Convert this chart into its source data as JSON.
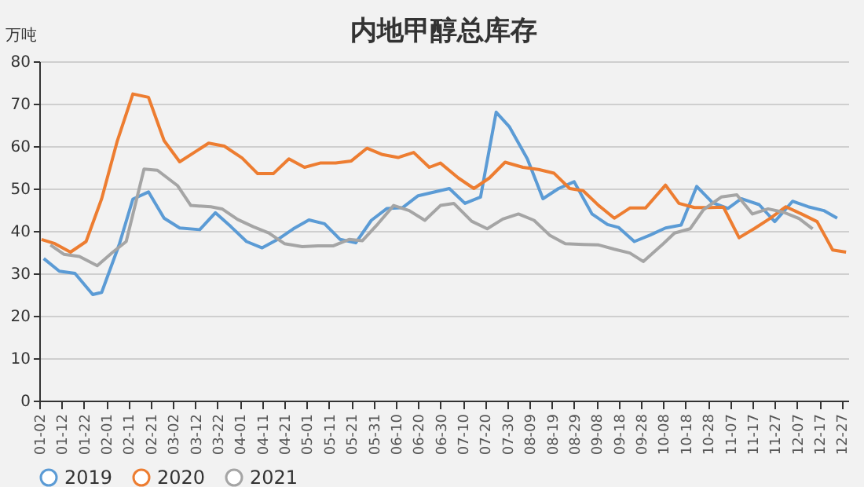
{
  "chart_data": {
    "type": "line",
    "title": "内地甲醇总库存",
    "ylabel": "万吨",
    "ylim": [
      0,
      80
    ],
    "yticks": [
      0,
      10,
      20,
      30,
      40,
      50,
      60,
      70,
      80
    ],
    "xlim": [
      "--01-02",
      "--12-30"
    ],
    "xticks": [
      {
        "value": "--01-02",
        "label": "01-02"
      },
      {
        "value": "--01-12",
        "label": "01-12"
      },
      {
        "value": "--01-22",
        "label": "01-22"
      },
      {
        "value": "--02-01",
        "label": "02-01"
      },
      {
        "value": "--02-11",
        "label": "02-11"
      },
      {
        "value": "--02-21",
        "label": "02-21"
      },
      {
        "value": "--03-02",
        "label": "03-02"
      },
      {
        "value": "--03-12",
        "label": "03-12"
      },
      {
        "value": "--03-22",
        "label": "03-22"
      },
      {
        "value": "--04-01",
        "label": "04-01"
      },
      {
        "value": "--04-11",
        "label": "04-11"
      },
      {
        "value": "--04-21",
        "label": "04-21"
      },
      {
        "value": "--05-01",
        "label": "05-01"
      },
      {
        "value": "--05-11",
        "label": "05-11"
      },
      {
        "value": "--05-21",
        "label": "05-21"
      },
      {
        "value": "--05-31",
        "label": "05-31"
      },
      {
        "value": "--06-10",
        "label": "06-10"
      },
      {
        "value": "--06-20",
        "label": "06-20"
      },
      {
        "value": "--06-30",
        "label": "06-30"
      },
      {
        "value": "--07-10",
        "label": "07-10"
      },
      {
        "value": "--07-20",
        "label": "07-20"
      },
      {
        "value": "--07-30",
        "label": "07-30"
      },
      {
        "value": "--08-09",
        "label": "08-09"
      },
      {
        "value": "--08-19",
        "label": "08-19"
      },
      {
        "value": "--08-29",
        "label": "08-29"
      },
      {
        "value": "--09-08",
        "label": "09-08"
      },
      {
        "value": "--09-18",
        "label": "09-18"
      },
      {
        "value": "--09-28",
        "label": "09-28"
      },
      {
        "value": "--10-08",
        "label": "10-08"
      },
      {
        "value": "--10-18",
        "label": "10-18"
      },
      {
        "value": "--10-28",
        "label": "10-28"
      },
      {
        "value": "--11-07",
        "label": "11-07"
      },
      {
        "value": "--11-17",
        "label": "11-17"
      },
      {
        "value": "--11-27",
        "label": "11-27"
      },
      {
        "value": "--12-07",
        "label": "12-07"
      },
      {
        "value": "--12-17",
        "label": "12-17"
      },
      {
        "value": "--12-27",
        "label": "12-27"
      }
    ],
    "grid": "y",
    "legend": "bottom",
    "marker": "none",
    "line_style": "solid",
    "series": [
      {
        "name": "2019",
        "color": "#5b9bd5",
        "x": [
          "--01-04",
          "--01-11",
          "--01-18",
          "--01-26",
          "--01-30",
          "--02-07",
          "--02-13",
          "--02-20",
          "--02-27",
          "--03-05",
          "--03-14",
          "--03-21",
          "--03-28",
          "--04-04",
          "--04-11",
          "--04-18",
          "--04-25",
          "--05-02",
          "--05-09",
          "--05-16",
          "--05-23",
          "--05-30",
          "--06-06",
          "--06-13",
          "--06-20",
          "--07-04",
          "--07-11",
          "--07-18",
          "--07-25",
          "--07-31",
          "--08-08",
          "--08-15",
          "--08-22",
          "--08-29",
          "--09-06",
          "--09-13",
          "--09-18",
          "--09-25",
          "--10-02",
          "--10-09",
          "--10-16",
          "--10-23",
          "--10-30",
          "--11-06",
          "--11-12",
          "--11-20",
          "--11-27",
          "--12-05",
          "--12-12",
          "--12-19",
          "--12-25"
        ],
        "values": [
          33.5,
          30.5,
          30,
          25,
          25.5,
          37,
          47.5,
          49.2,
          43,
          40.7,
          40.3,
          44.3,
          41,
          37.5,
          36,
          38,
          40.5,
          42.6,
          41.7,
          38,
          37.2,
          42.5,
          45.3,
          45.5,
          48.3,
          50,
          46.5,
          48,
          68,
          64.5,
          57,
          47.6,
          50,
          51.6,
          44,
          41.5,
          40.8,
          37.5,
          39,
          40.7,
          41.4,
          50.5,
          46.7,
          45.3,
          47.6,
          46.2,
          42.2,
          47,
          45.7,
          44.8,
          43
        ]
      },
      {
        "name": "2020",
        "color": "#ed7d31",
        "x": [
          "--01-03",
          "--01-09",
          "--01-16",
          "--01-23",
          "--01-30",
          "--02-06",
          "--02-13",
          "--02-20",
          "--02-27",
          "--03-05",
          "--03-13",
          "--03-18",
          "--03-25",
          "--04-02",
          "--04-09",
          "--04-16",
          "--04-23",
          "--04-30",
          "--05-07",
          "--05-14",
          "--05-21",
          "--05-28",
          "--06-04",
          "--06-11",
          "--06-18",
          "--06-25",
          "--06-30",
          "--07-08",
          "--07-15",
          "--07-22",
          "--07-29",
          "--08-06",
          "--08-13",
          "--08-20",
          "--08-27",
          "--09-02",
          "--09-09",
          "--09-16",
          "--09-23",
          "--09-30",
          "--10-09",
          "--10-15",
          "--10-22",
          "--10-29",
          "--11-04",
          "--11-11",
          "--11-18",
          "--11-25",
          "--12-02",
          "--12-09",
          "--12-16",
          "--12-23",
          "--12-29"
        ],
        "values": [
          38,
          37,
          35,
          37.5,
          47.6,
          61.2,
          72.3,
          71.5,
          61.3,
          56.3,
          59,
          60.7,
          60,
          57.2,
          53.5,
          53.5,
          57,
          55,
          56,
          56,
          56.5,
          59.5,
          58,
          57.3,
          58.5,
          55,
          56,
          52.5,
          50,
          52.5,
          56.2,
          55,
          54.5,
          53.6,
          50,
          49.5,
          46,
          43,
          45.4,
          45.4,
          50.8,
          46.5,
          45.5,
          45.5,
          45.6,
          38.4,
          40.6,
          43,
          45.7,
          44,
          42.2,
          35.5,
          35
        ]
      },
      {
        "name": "2021",
        "color": "#a5a5a5",
        "x": [
          "--01-07",
          "--01-13",
          "--01-20",
          "--01-28",
          "--02-04",
          "--02-10",
          "--02-18",
          "--02-24",
          "--03-04",
          "--03-10",
          "--03-19",
          "--03-24",
          "--03-31",
          "--04-07",
          "--04-14",
          "--04-21",
          "--04-29",
          "--05-06",
          "--05-13",
          "--05-20",
          "--05-26",
          "--06-02",
          "--06-09",
          "--06-16",
          "--06-23",
          "--06-30",
          "--07-06",
          "--07-14",
          "--07-21",
          "--07-28",
          "--08-04",
          "--08-11",
          "--08-18",
          "--08-25",
          "--09-02",
          "--09-09",
          "--09-16",
          "--09-23",
          "--09-29",
          "--10-08",
          "--10-13",
          "--10-20",
          "--10-26",
          "--11-03",
          "--11-10",
          "--11-17",
          "--11-24",
          "--12-01",
          "--12-08",
          "--12-14"
        ],
        "values": [
          36.7,
          34.5,
          34,
          31.8,
          35,
          37.5,
          54.6,
          54.3,
          50.7,
          46,
          45.7,
          45.2,
          42.7,
          41,
          39.5,
          37,
          36.3,
          36.5,
          36.5,
          38,
          37.7,
          41.7,
          46,
          44.8,
          42.5,
          46,
          46.5,
          42.3,
          40.5,
          42.8,
          44,
          42.5,
          39,
          37,
          36.8,
          36.7,
          35.7,
          34.8,
          32.8,
          37,
          39.5,
          40.5,
          45,
          48,
          48.5,
          44,
          45.2,
          44.4,
          42.9,
          40.5
        ]
      }
    ]
  }
}
